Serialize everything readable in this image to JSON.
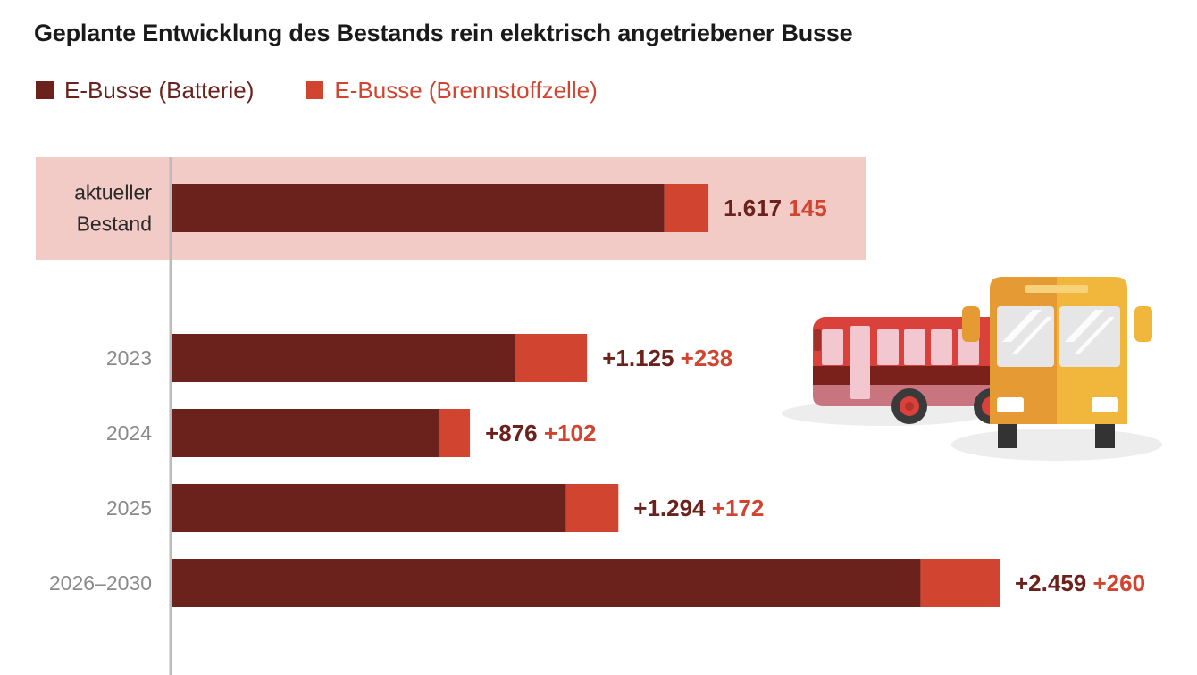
{
  "chart_data": {
    "type": "bar",
    "orientation": "horizontal",
    "stacked": true,
    "title": "Geplante Entwicklung des Bestands rein elektrisch angetriebener Busse",
    "legend": {
      "placement": "top-left"
    },
    "series": [
      {
        "name": "E-Busse (Batterie)",
        "color": "#6b211c",
        "values": [
          1617,
          1125,
          876,
          1294,
          2459
        ]
      },
      {
        "name": "E-Busse (Brennstoffzelle)",
        "color": "#d04430",
        "values": [
          145,
          238,
          102,
          172,
          260
        ]
      }
    ],
    "categories": [
      {
        "label": [
          "aktueller",
          "Bestand"
        ],
        "highlight": true,
        "value_labels": [
          "1.617",
          "145"
        ]
      },
      {
        "label": [
          "2023"
        ],
        "highlight": false,
        "value_labels": [
          "+1.125",
          "+238"
        ]
      },
      {
        "label": [
          "2024"
        ],
        "highlight": false,
        "value_labels": [
          "+876",
          "+102"
        ]
      },
      {
        "label": [
          "2025"
        ],
        "highlight": false,
        "value_labels": [
          "+1.294",
          "+172"
        ]
      },
      {
        "label": [
          "2026–2030"
        ],
        "highlight": false,
        "value_labels": [
          "+2.459",
          "+260"
        ]
      }
    ],
    "xlim": [
      0,
      2719
    ],
    "grid": false,
    "colors": {
      "highlight_band": "#f2cbc6",
      "axis_line": "#bbbbbb",
      "category_label": "#8a8a8a",
      "category_label_highlight": "#2a2a2a"
    }
  },
  "illustration": {
    "icon": "bus-icon"
  }
}
